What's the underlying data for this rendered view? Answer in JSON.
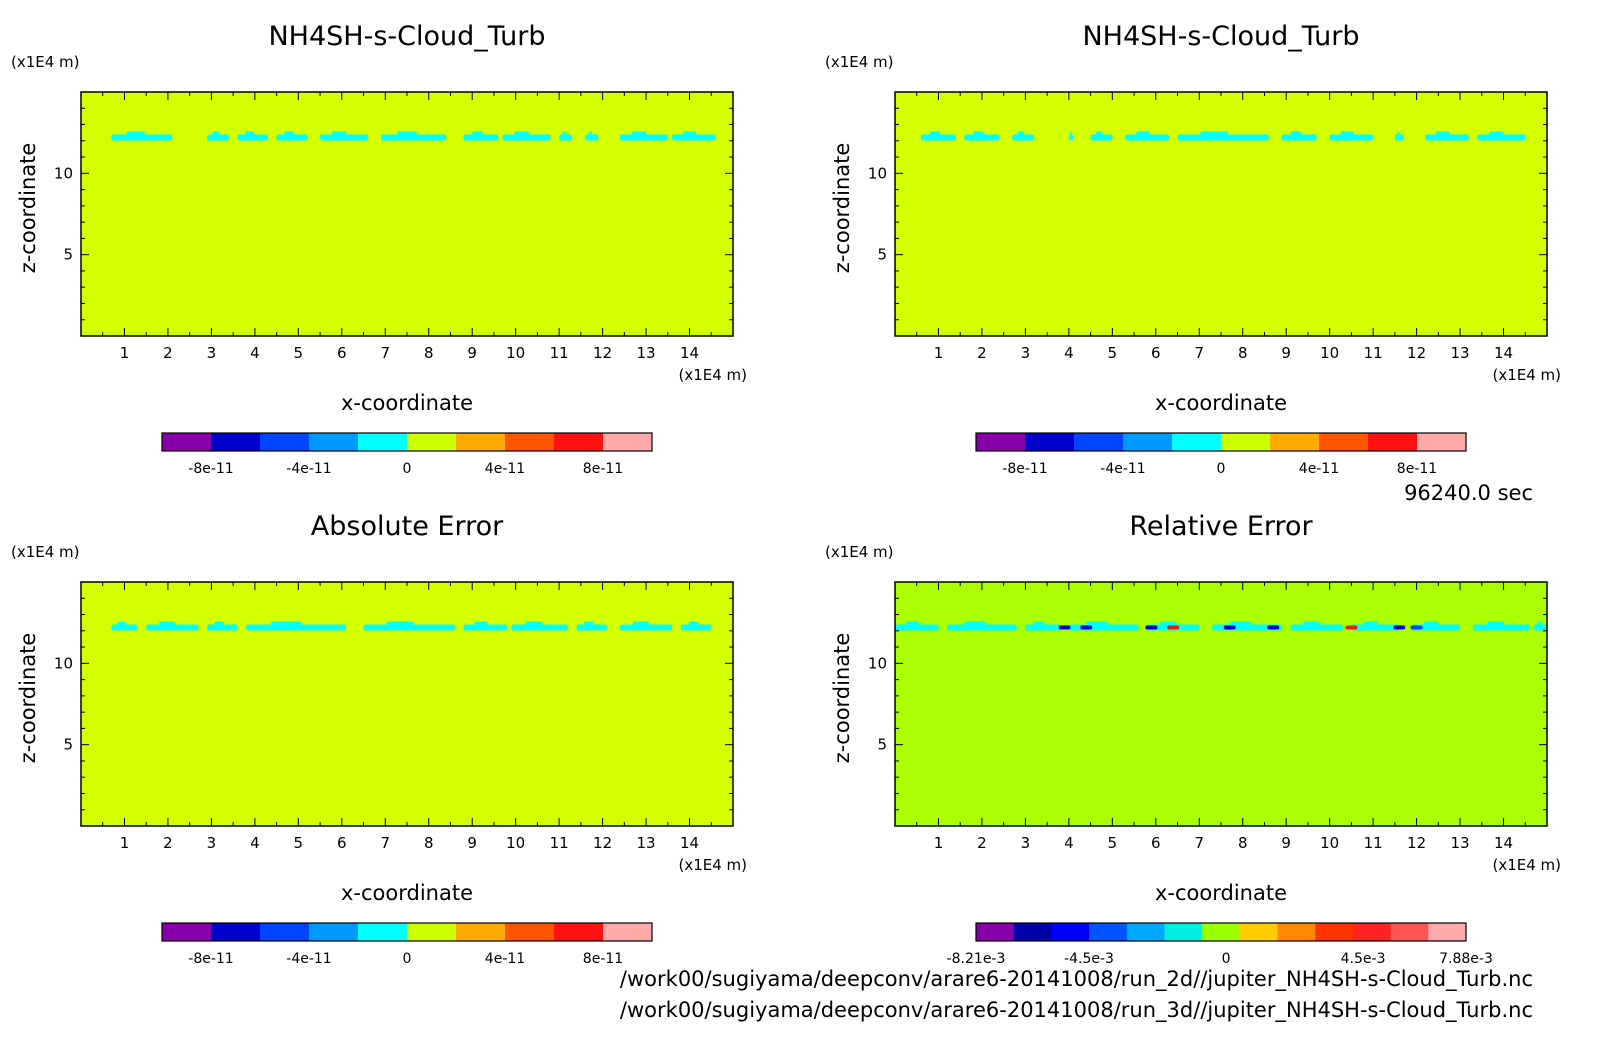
{
  "chart_data": [
    {
      "type": "heatmap",
      "title": "NH4SH-s-Cloud_Turb",
      "xlabel": "x-coordinate",
      "ylabel": "z-coordinate",
      "x_unit": "(x1E4 m)",
      "y_unit": "(x1E4 m)",
      "xlim": [
        0,
        15
      ],
      "ylim": [
        0,
        15
      ],
      "x_ticks": [
        "1",
        "2",
        "3",
        "4",
        "5",
        "6",
        "7",
        "8",
        "9",
        "10",
        "11",
        "12",
        "13",
        "14"
      ],
      "y_ticks": [
        "5",
        "10"
      ],
      "background_color": "#d4ff00",
      "band": {
        "z": 12.2,
        "color": "#00ffff",
        "segments": [
          [
            0.7,
            2.1
          ],
          [
            2.9,
            3.4
          ],
          [
            3.6,
            4.3
          ],
          [
            4.5,
            5.2
          ],
          [
            5.5,
            6.6
          ],
          [
            6.9,
            8.4
          ],
          [
            8.8,
            9.6
          ],
          [
            9.7,
            10.8
          ],
          [
            11.0,
            11.3
          ],
          [
            11.6,
            11.9
          ],
          [
            12.4,
            13.5
          ],
          [
            13.6,
            14.6
          ]
        ]
      },
      "colorbar": {
        "colors": [
          "#8800aa",
          "#0000cc",
          "#0044ff",
          "#0099ff",
          "#00ffff",
          "#ccff00",
          "#ffaa00",
          "#ff5500",
          "#ff1111",
          "#ffaaaa"
        ],
        "tick_labels": [
          "-8e-11",
          "-4e-11",
          "0",
          "4e-11",
          "8e-11"
        ],
        "tick_values": [
          -8e-11,
          -4e-11,
          0,
          4e-11,
          8e-11
        ],
        "range": [
          -1e-10,
          1e-10
        ]
      }
    },
    {
      "type": "heatmap",
      "title": "NH4SH-s-Cloud_Turb",
      "xlabel": "x-coordinate",
      "ylabel": "z-coordinate",
      "x_unit": "(x1E4 m)",
      "y_unit": "(x1E4 m)",
      "xlim": [
        0,
        15
      ],
      "ylim": [
        0,
        15
      ],
      "x_ticks": [
        "1",
        "2",
        "3",
        "4",
        "5",
        "6",
        "7",
        "8",
        "9",
        "10",
        "11",
        "12",
        "13",
        "14"
      ],
      "y_ticks": [
        "5",
        "10"
      ],
      "background_color": "#d4ff00",
      "band": {
        "z": 12.2,
        "color": "#00ffff",
        "segments": [
          [
            0.6,
            1.4
          ],
          [
            1.6,
            2.4
          ],
          [
            2.7,
            3.2
          ],
          [
            4.0,
            4.1
          ],
          [
            4.5,
            5.0
          ],
          [
            5.3,
            6.3
          ],
          [
            6.5,
            8.6
          ],
          [
            8.9,
            9.7
          ],
          [
            10.0,
            11.0
          ],
          [
            11.5,
            11.7
          ],
          [
            12.2,
            13.2
          ],
          [
            13.4,
            14.5
          ]
        ]
      },
      "colorbar": {
        "colors": [
          "#8800aa",
          "#0000cc",
          "#0044ff",
          "#0099ff",
          "#00ffff",
          "#ccff00",
          "#ffaa00",
          "#ff5500",
          "#ff1111",
          "#ffaaaa"
        ],
        "tick_labels": [
          "-8e-11",
          "-4e-11",
          "0",
          "4e-11",
          "8e-11"
        ],
        "tick_values": [
          -8e-11,
          -4e-11,
          0,
          4e-11,
          8e-11
        ],
        "range": [
          -1e-10,
          1e-10
        ]
      }
    },
    {
      "type": "heatmap",
      "title": "Absolute Error",
      "xlabel": "x-coordinate",
      "ylabel": "z-coordinate",
      "x_unit": "(x1E4 m)",
      "y_unit": "(x1E4 m)",
      "xlim": [
        0,
        15
      ],
      "ylim": [
        0,
        15
      ],
      "x_ticks": [
        "1",
        "2",
        "3",
        "4",
        "5",
        "6",
        "7",
        "8",
        "9",
        "10",
        "11",
        "12",
        "13",
        "14"
      ],
      "y_ticks": [
        "5",
        "10"
      ],
      "background_color": "#d4ff00",
      "band": {
        "z": 12.2,
        "color": "#00ffff",
        "segments": [
          [
            0.7,
            1.3
          ],
          [
            1.5,
            2.7
          ],
          [
            2.9,
            3.6
          ],
          [
            3.8,
            6.1
          ],
          [
            6.5,
            8.6
          ],
          [
            8.8,
            9.8
          ],
          [
            9.9,
            11.2
          ],
          [
            11.4,
            12.1
          ],
          [
            12.4,
            13.6
          ],
          [
            13.8,
            14.5
          ]
        ]
      },
      "colorbar": {
        "colors": [
          "#8800aa",
          "#0000cc",
          "#0044ff",
          "#0099ff",
          "#00ffff",
          "#ccff00",
          "#ffaa00",
          "#ff5500",
          "#ff1111",
          "#ffaaaa"
        ],
        "tick_labels": [
          "-8e-11",
          "-4e-11",
          "0",
          "4e-11",
          "8e-11"
        ],
        "tick_values": [
          -8e-11,
          -4e-11,
          0,
          4e-11,
          8e-11
        ],
        "range": [
          -1e-10,
          1e-10
        ]
      }
    },
    {
      "type": "heatmap",
      "title": "Relative Error",
      "xlabel": "x-coordinate",
      "ylabel": "z-coordinate",
      "x_unit": "(x1E4 m)",
      "y_unit": "(x1E4 m)",
      "xlim": [
        0,
        15
      ],
      "ylim": [
        0,
        15
      ],
      "x_ticks": [
        "1",
        "2",
        "3",
        "4",
        "5",
        "6",
        "7",
        "8",
        "9",
        "10",
        "11",
        "12",
        "13",
        "14"
      ],
      "y_ticks": [
        "5",
        "10"
      ],
      "background_color": "#aaff00",
      "band": {
        "z": 12.2,
        "color": "#00ffff",
        "segments": [
          [
            0.0,
            1.0
          ],
          [
            1.2,
            2.8
          ],
          [
            3.0,
            3.8
          ],
          [
            4.0,
            5.6
          ],
          [
            5.8,
            7.0
          ],
          [
            7.3,
            8.9
          ],
          [
            9.1,
            10.3
          ],
          [
            10.5,
            11.6
          ],
          [
            11.9,
            13.0
          ],
          [
            13.3,
            14.6
          ],
          [
            14.7,
            15.0
          ]
        ]
      },
      "spots": [
        {
          "x": 3.9,
          "color": "#0000cc"
        },
        {
          "x": 4.4,
          "color": "#0000cc"
        },
        {
          "x": 5.9,
          "color": "#0000cc"
        },
        {
          "x": 6.4,
          "color": "#dd2222"
        },
        {
          "x": 7.7,
          "color": "#0000cc"
        },
        {
          "x": 8.7,
          "color": "#0000cc"
        },
        {
          "x": 10.5,
          "color": "#dd2222"
        },
        {
          "x": 11.6,
          "color": "#0000cc"
        },
        {
          "x": 12.0,
          "color": "#0044ff"
        }
      ],
      "colorbar": {
        "colors": [
          "#8800aa",
          "#0000aa",
          "#0000ff",
          "#0055ff",
          "#00aaff",
          "#00eedd",
          "#99ff00",
          "#ffcc00",
          "#ff8800",
          "#ff3300",
          "#ff2222",
          "#ff5555",
          "#ffaaaa"
        ],
        "tick_labels": [
          "-8.21e-3",
          "-4.5e-3",
          "0",
          "4.5e-3",
          "7.88e-3"
        ],
        "tick_values": [
          -0.00821,
          -0.0045,
          0,
          0.0045,
          0.00788
        ],
        "range": [
          -0.00821,
          0.00788
        ]
      }
    }
  ],
  "time_label": "96240.0 sec",
  "footer": {
    "path_2d": "/work00/sugiyama/deepconv/arare6-20141008/run_2d//jupiter_NH4SH-s-Cloud_Turb.nc",
    "path_3d": "/work00/sugiyama/deepconv/arare6-20141008/run_3d//jupiter_NH4SH-s-Cloud_Turb.nc"
  }
}
